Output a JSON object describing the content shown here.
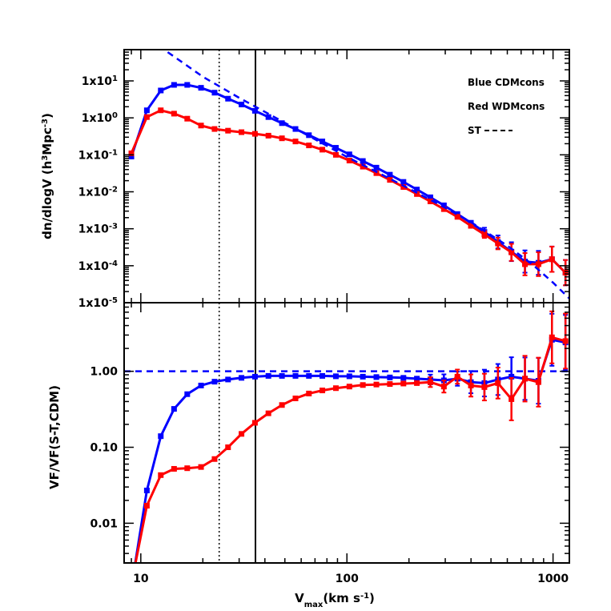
{
  "chart_data": [
    {
      "type": "line",
      "panel": "top",
      "ylabel_main": "dn/dlogV (h",
      "ylabel_sup1": "3",
      "ylabel_mid": "Mpc",
      "ylabel_sup2": "-3",
      "ylabel_end": ")",
      "xscale": "log",
      "yscale": "log",
      "xlim": [
        8.3,
        1200
      ],
      "ylim": [
        1e-05,
        70
      ],
      "yticks": [
        {
          "value": 10,
          "base": "1x10",
          "exp": "1"
        },
        {
          "value": 1,
          "base": "1x10",
          "exp": "0"
        },
        {
          "value": 0.1,
          "base": "1x10",
          "exp": "-1"
        },
        {
          "value": 0.01,
          "base": "1x10",
          "exp": "-2"
        },
        {
          "value": 0.001,
          "base": "1x10",
          "exp": "-3"
        },
        {
          "value": 0.0001,
          "base": "1x10",
          "exp": "-4"
        },
        {
          "value": 1e-05,
          "base": "1x10",
          "exp": "-5"
        }
      ],
      "vlines": [
        {
          "x": 24,
          "style": "dotted"
        },
        {
          "x": 36,
          "style": "solid"
        }
      ],
      "legend": {
        "placement": "top-right",
        "entries": [
          "Blue CDMcons",
          "Red WDMcons",
          "ST"
        ]
      },
      "series": [
        {
          "name": "CDMcons",
          "color": "#0000ff",
          "x": [
            9.0,
            10.7,
            12.5,
            14.5,
            16.8,
            19.6,
            22.8,
            26.5,
            30.8,
            35.8,
            41.6,
            48.4,
            56.3,
            65.4,
            76.0,
            88.4,
            102.8,
            119.5,
            139.0,
            161.6,
            188.0,
            218.5,
            254.0,
            295.5,
            343.6,
            399.5,
            464.6,
            540.3,
            628.3,
            730.7,
            849.7,
            988.0,
            1149.0
          ],
          "y": [
            0.09,
            1.6,
            5.5,
            7.8,
            7.8,
            6.5,
            4.8,
            3.3,
            2.3,
            1.55,
            1.05,
            0.72,
            0.5,
            0.34,
            0.23,
            0.155,
            0.103,
            0.068,
            0.045,
            0.029,
            0.0185,
            0.0115,
            0.0071,
            0.0043,
            0.0025,
            0.00145,
            0.00082,
            0.00044,
            0.00024,
            0.00013,
            0.00012,
            0.00015,
            6.5e-05
          ],
          "yerr": [
            0,
            0,
            0,
            0,
            0,
            0,
            0,
            0,
            0,
            0,
            0,
            0,
            0,
            0,
            0,
            0,
            0,
            0,
            0,
            0,
            0,
            0,
            0,
            0,
            0,
            0,
            0.15,
            0.25,
            0.4,
            0.5,
            0.55,
            0.6,
            0.6
          ]
        },
        {
          "name": "WDMcons",
          "color": "#ff0000",
          "x": [
            9.0,
            10.7,
            12.5,
            14.5,
            16.8,
            19.6,
            22.8,
            26.5,
            30.8,
            35.8,
            41.6,
            48.4,
            56.3,
            65.4,
            76.0,
            88.4,
            102.8,
            119.5,
            139.0,
            161.6,
            188.0,
            218.5,
            254.0,
            295.5,
            343.6,
            399.5,
            464.6,
            540.3,
            628.3,
            730.7,
            849.7,
            988.0,
            1149.0
          ],
          "y": [
            0.11,
            1.05,
            1.6,
            1.3,
            0.95,
            0.62,
            0.5,
            0.45,
            0.41,
            0.37,
            0.33,
            0.28,
            0.23,
            0.18,
            0.138,
            0.1,
            0.07,
            0.048,
            0.032,
            0.021,
            0.0135,
            0.0087,
            0.0055,
            0.0034,
            0.0021,
            0.0012,
            0.0007,
            0.0004,
            0.00023,
            0.00011,
            0.00011,
            0.00015,
            6.5e-05
          ],
          "yerr": [
            0,
            0,
            0,
            0,
            0,
            0,
            0,
            0,
            0,
            0,
            0,
            0,
            0,
            0,
            0,
            0,
            0,
            0,
            0,
            0,
            0,
            0,
            0,
            0,
            0,
            0,
            0.12,
            0.22,
            0.35,
            0.5,
            0.55,
            0.6,
            0.6
          ]
        },
        {
          "name": "ST",
          "color": "#0000ff",
          "style": "dashed",
          "x": [
            13.5,
            20,
            30,
            40,
            60,
            80,
            100,
            150,
            200,
            300,
            400,
            600,
            800,
            1000,
            1200
          ],
          "y": [
            60,
            13,
            3.5,
            1.45,
            0.42,
            0.175,
            0.088,
            0.028,
            0.0122,
            0.0037,
            0.0015,
            0.00035,
            0.000105,
            3.5e-05,
            1.3e-05
          ]
        }
      ]
    },
    {
      "type": "line",
      "panel": "bottom",
      "xlabel_main": "V",
      "xlabel_sub": "max",
      "xlabel_end": "(km s",
      "xlabel_sup": "-1",
      "xlabel_close": ")",
      "ylabel": "VF/VF(S-T,CDM)",
      "xscale": "log",
      "yscale": "log",
      "xlim": [
        8.3,
        1200
      ],
      "ylim": [
        0.003,
        8
      ],
      "xticks": [
        {
          "value": 10,
          "label": "10"
        },
        {
          "value": 100,
          "label": "100"
        },
        {
          "value": 1000,
          "label": "1000"
        }
      ],
      "yticks": [
        {
          "value": 1,
          "label": "1.00"
        },
        {
          "value": 0.1,
          "label": "0.10"
        },
        {
          "value": 0.01,
          "label": "0.01"
        }
      ],
      "hline": {
        "y": 1,
        "style": "dashed"
      },
      "vlines": [
        {
          "x": 24,
          "style": "dotted"
        },
        {
          "x": 36,
          "style": "solid"
        }
      ],
      "series": [
        {
          "name": "CDMcons",
          "color": "#0000ff",
          "x": [
            9.3,
            10.7,
            12.5,
            14.5,
            16.8,
            19.6,
            22.8,
            26.5,
            30.8,
            35.8,
            41.6,
            48.4,
            56.3,
            65.4,
            76.0,
            88.4,
            102.8,
            119.5,
            139.0,
            161.6,
            188.0,
            218.5,
            254.0,
            295.5,
            343.6,
            399.5,
            464.6,
            540.3,
            628.3,
            730.7,
            849.7,
            988.0,
            1149.0
          ],
          "y": [
            0.0025,
            0.027,
            0.14,
            0.32,
            0.5,
            0.65,
            0.73,
            0.78,
            0.82,
            0.85,
            0.87,
            0.87,
            0.87,
            0.87,
            0.87,
            0.86,
            0.86,
            0.85,
            0.84,
            0.83,
            0.82,
            0.8,
            0.78,
            0.76,
            0.8,
            0.72,
            0.7,
            0.78,
            0.85,
            0.8,
            0.75,
            2.6,
            2.4
          ],
          "yerr": [
            0,
            0,
            0,
            0,
            0,
            0,
            0,
            0,
            0,
            0,
            0,
            0,
            0,
            0,
            0,
            0,
            0,
            0,
            0,
            0,
            0,
            0,
            0.08,
            0.1,
            0.12,
            0.2,
            0.25,
            0.3,
            0.4,
            0.45,
            0.5,
            0.6,
            0.65
          ]
        },
        {
          "name": "WDMcons",
          "color": "#ff0000",
          "x": [
            9.3,
            10.7,
            12.5,
            14.5,
            16.8,
            19.6,
            22.8,
            26.5,
            30.8,
            35.8,
            41.6,
            48.4,
            56.3,
            65.4,
            76.0,
            88.4,
            102.8,
            119.5,
            139.0,
            161.6,
            188.0,
            218.5,
            254.0,
            295.5,
            343.6,
            399.5,
            464.6,
            540.3,
            628.3,
            730.7,
            849.7,
            988.0,
            1149.0
          ],
          "y": [
            0.0025,
            0.017,
            0.043,
            0.052,
            0.053,
            0.055,
            0.07,
            0.1,
            0.15,
            0.21,
            0.28,
            0.36,
            0.44,
            0.51,
            0.56,
            0.6,
            0.63,
            0.66,
            0.67,
            0.68,
            0.69,
            0.7,
            0.72,
            0.63,
            0.85,
            0.65,
            0.62,
            0.7,
            0.43,
            0.8,
            0.72,
            2.8,
            2.5
          ],
          "yerr": [
            0,
            0,
            0,
            0,
            0,
            0,
            0,
            0,
            0,
            0,
            0,
            0,
            0,
            0,
            0,
            0,
            0,
            0,
            0,
            0,
            0,
            0,
            0.08,
            0.1,
            0.12,
            0.2,
            0.25,
            0.3,
            0.45,
            0.5,
            0.55,
            0.6,
            0.65
          ]
        }
      ]
    }
  ]
}
